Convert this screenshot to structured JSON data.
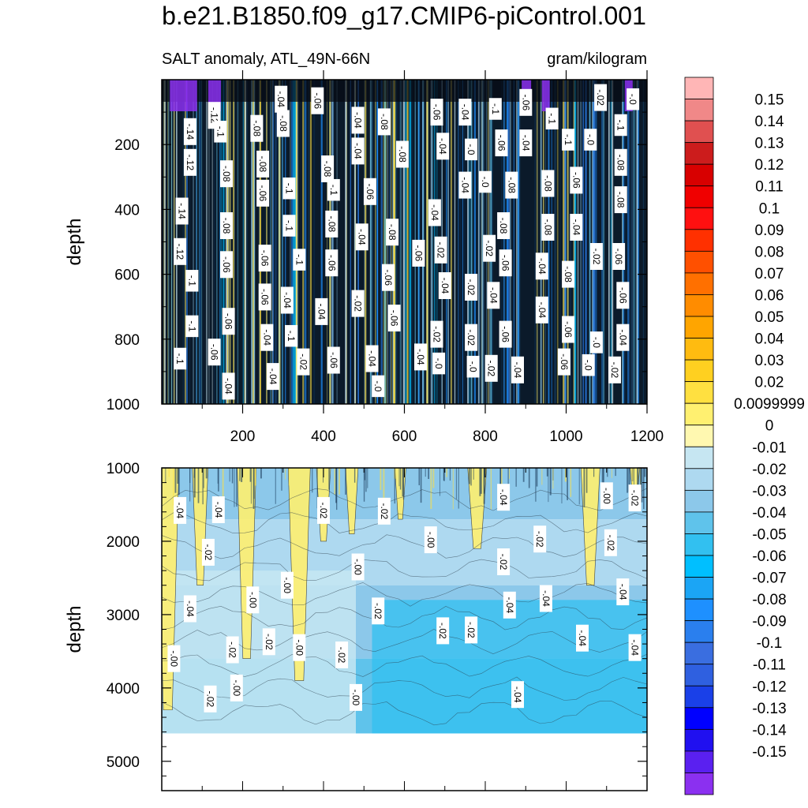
{
  "title": "b.e21.B1850.f09_g17.CMIP6-piControl.001",
  "subtitle_left": "SALT anomaly, ATL_49N-66N",
  "subtitle_right": "gram/kilogram",
  "colors": {
    "levels": [
      "#8b30f0",
      "#5a20f0",
      "#2010f0",
      "#0000ff",
      "#1a40e8",
      "#2f60e0",
      "#3a6ee0",
      "#2a7fee",
      "#1e90ff",
      "#1ba5f5",
      "#00bfff",
      "#32c0f0",
      "#5fc3eb",
      "#8cc8ea",
      "#aed9f0",
      "#c6e6f2",
      "#fff8b0",
      "#fff070",
      "#ffe040",
      "#ffd020",
      "#ffbb10",
      "#ffa500",
      "#ff8c00",
      "#ff7000",
      "#ff5000",
      "#ff3000",
      "#ff1010",
      "#f00000",
      "#d80000",
      "#cc1c1c",
      "#e05050",
      "#f08888",
      "#ffb6b6"
    ]
  },
  "chart_data": [
    {
      "type": "heatmap",
      "name": "upper-panel",
      "title": "SALT anomaly, ATL_49N-66N",
      "xlabel": "",
      "ylabel": "depth",
      "xlim": [
        0,
        1200
      ],
      "ylim": [
        1000,
        0
      ],
      "xticks": [
        200,
        400,
        600,
        800,
        1000,
        1200
      ],
      "yticks": [
        200,
        400,
        600,
        800,
        1000
      ],
      "contour_labels": [
        {
          "text": "-.14",
          "x": 70,
          "y": 160
        },
        {
          "text": "-.12",
          "x": 130,
          "y": 110
        },
        {
          "text": "-.1",
          "x": 145,
          "y": 160
        },
        {
          "text": "-.12",
          "x": 70,
          "y": 255
        },
        {
          "text": "-.08",
          "x": 160,
          "y": 290
        },
        {
          "text": "-.14",
          "x": 50,
          "y": 405
        },
        {
          "text": "-.12",
          "x": 45,
          "y": 530
        },
        {
          "text": "-.1",
          "x": 75,
          "y": 620
        },
        {
          "text": "-.1",
          "x": 75,
          "y": 760
        },
        {
          "text": "-.1",
          "x": 45,
          "y": 860
        },
        {
          "text": "-.06",
          "x": 130,
          "y": 840
        },
        {
          "text": "-.08",
          "x": 160,
          "y": 450
        },
        {
          "text": "-.06",
          "x": 160,
          "y": 570
        },
        {
          "text": "-.06",
          "x": 165,
          "y": 745
        },
        {
          "text": "-.04",
          "x": 165,
          "y": 945
        },
        {
          "text": "-.08",
          "x": 235,
          "y": 150
        },
        {
          "text": "-.08",
          "x": 300,
          "y": 135
        },
        {
          "text": "-.04",
          "x": 295,
          "y": 60
        },
        {
          "text": "-.06",
          "x": 385,
          "y": 65
        },
        {
          "text": "-.08",
          "x": 250,
          "y": 260
        },
        {
          "text": "-.06",
          "x": 250,
          "y": 350
        },
        {
          "text": "-.06",
          "x": 255,
          "y": 550
        },
        {
          "text": "-.06",
          "x": 255,
          "y": 670
        },
        {
          "text": "-.04",
          "x": 260,
          "y": 795
        },
        {
          "text": "-.04",
          "x": 275,
          "y": 915
        },
        {
          "text": "-.1",
          "x": 315,
          "y": 335
        },
        {
          "text": "-.1",
          "x": 315,
          "y": 450
        },
        {
          "text": "-.1",
          "x": 340,
          "y": 555
        },
        {
          "text": "-.04",
          "x": 310,
          "y": 680
        },
        {
          "text": "-.1",
          "x": 320,
          "y": 790
        },
        {
          "text": "-.02",
          "x": 350,
          "y": 870
        },
        {
          "text": "-.08",
          "x": 410,
          "y": 275
        },
        {
          "text": "-.1",
          "x": 425,
          "y": 340
        },
        {
          "text": "-.08",
          "x": 420,
          "y": 445
        },
        {
          "text": "-.06",
          "x": 420,
          "y": 565
        },
        {
          "text": "-.04",
          "x": 395,
          "y": 715
        },
        {
          "text": "-.06",
          "x": 425,
          "y": 865
        },
        {
          "text": "-.04",
          "x": 485,
          "y": 125
        },
        {
          "text": "-.04",
          "x": 485,
          "y": 220
        },
        {
          "text": "-.06",
          "x": 515,
          "y": 345
        },
        {
          "text": "-.04",
          "x": 495,
          "y": 485
        },
        {
          "text": "-.02",
          "x": 485,
          "y": 690
        },
        {
          "text": "-.04",
          "x": 520,
          "y": 860
        },
        {
          "text": "-.0",
          "x": 535,
          "y": 945
        },
        {
          "text": "-.08",
          "x": 550,
          "y": 130
        },
        {
          "text": "-.08",
          "x": 595,
          "y": 230
        },
        {
          "text": "-.08",
          "x": 570,
          "y": 470
        },
        {
          "text": "-.06",
          "x": 560,
          "y": 610
        },
        {
          "text": "-.06",
          "x": 575,
          "y": 735
        },
        {
          "text": "-.06",
          "x": 635,
          "y": 535
        },
        {
          "text": "-.04",
          "x": 640,
          "y": 855
        },
        {
          "text": "-.06",
          "x": 680,
          "y": 100
        },
        {
          "text": "-.04",
          "x": 695,
          "y": 205
        },
        {
          "text": "-.04",
          "x": 675,
          "y": 410
        },
        {
          "text": "-.02",
          "x": 690,
          "y": 525
        },
        {
          "text": "-.04",
          "x": 700,
          "y": 635
        },
        {
          "text": "-.02",
          "x": 680,
          "y": 785
        },
        {
          "text": "-.0",
          "x": 685,
          "y": 875
        },
        {
          "text": "-.04",
          "x": 750,
          "y": 100
        },
        {
          "text": "-.0",
          "x": 765,
          "y": 215
        },
        {
          "text": "-.04",
          "x": 750,
          "y": 325
        },
        {
          "text": "-.02",
          "x": 765,
          "y": 640
        },
        {
          "text": "-.02",
          "x": 765,
          "y": 795
        },
        {
          "text": "-.0",
          "x": 770,
          "y": 885
        },
        {
          "text": "-.02",
          "x": 810,
          "y": 520
        },
        {
          "text": "-.0",
          "x": 800,
          "y": 315
        },
        {
          "text": "-.1",
          "x": 825,
          "y": 90
        },
        {
          "text": "-.06",
          "x": 840,
          "y": 195
        },
        {
          "text": "-.08",
          "x": 865,
          "y": 325
        },
        {
          "text": "-.08",
          "x": 845,
          "y": 450
        },
        {
          "text": "-.06",
          "x": 850,
          "y": 565
        },
        {
          "text": "-.04",
          "x": 820,
          "y": 665
        },
        {
          "text": "-.06",
          "x": 850,
          "y": 785
        },
        {
          "text": "-.02",
          "x": 815,
          "y": 890
        },
        {
          "text": "-.04",
          "x": 880,
          "y": 895
        },
        {
          "text": "-.06",
          "x": 900,
          "y": 70
        },
        {
          "text": "-.04",
          "x": 900,
          "y": 195
        },
        {
          "text": "-.1",
          "x": 965,
          "y": 120
        },
        {
          "text": "-.08",
          "x": 955,
          "y": 320
        },
        {
          "text": "-.08",
          "x": 955,
          "y": 455
        },
        {
          "text": "-.04",
          "x": 940,
          "y": 575
        },
        {
          "text": "-.04",
          "x": 940,
          "y": 710
        },
        {
          "text": "-.06",
          "x": 1005,
          "y": 770
        },
        {
          "text": "-.06",
          "x": 995,
          "y": 870
        },
        {
          "text": "-.1",
          "x": 1005,
          "y": 185
        },
        {
          "text": "-.06",
          "x": 1025,
          "y": 310
        },
        {
          "text": "-.04",
          "x": 1025,
          "y": 455
        },
        {
          "text": "-.08",
          "x": 1005,
          "y": 600
        },
        {
          "text": "-.0",
          "x": 1060,
          "y": 185
        },
        {
          "text": "-.0",
          "x": 1075,
          "y": 810
        },
        {
          "text": "-.0",
          "x": 1055,
          "y": 880
        },
        {
          "text": "-.02",
          "x": 1085,
          "y": 55
        },
        {
          "text": "-.02",
          "x": 1075,
          "y": 545
        },
        {
          "text": "-.1",
          "x": 1135,
          "y": 140
        },
        {
          "text": "-.08",
          "x": 1135,
          "y": 255
        },
        {
          "text": "-.08",
          "x": 1135,
          "y": 370
        },
        {
          "text": "-.06",
          "x": 1130,
          "y": 545
        },
        {
          "text": "-.06",
          "x": 1140,
          "y": 665
        },
        {
          "text": "-.04",
          "x": 1140,
          "y": 795
        },
        {
          "text": "-.02",
          "x": 1120,
          "y": 895
        },
        {
          "text": "-.0",
          "x": 1165,
          "y": 60
        }
      ]
    },
    {
      "type": "heatmap",
      "name": "lower-panel",
      "title": "",
      "xlabel": "",
      "ylabel": "depth",
      "xlim": [
        0,
        1200
      ],
      "ylim": [
        5400,
        1000
      ],
      "xticks": [],
      "yticks": [
        1000,
        2000,
        3000,
        4000,
        5000
      ],
      "data_bottom_depth": 4620,
      "contour_labels": [
        {
          "text": "-.04",
          "x": 45,
          "y": 1580
        },
        {
          "text": "-.04",
          "x": 140,
          "y": 1570
        },
        {
          "text": "-.02",
          "x": 115,
          "y": 2150
        },
        {
          "text": "-.04",
          "x": 70,
          "y": 2920
        },
        {
          "text": "-.00",
          "x": 30,
          "y": 3600
        },
        {
          "text": "-.02",
          "x": 120,
          "y": 4150
        },
        {
          "text": "-.00",
          "x": 185,
          "y": 4000
        },
        {
          "text": "-.02",
          "x": 175,
          "y": 3480
        },
        {
          "text": "-.00",
          "x": 225,
          "y": 2800
        },
        {
          "text": "-.02",
          "x": 265,
          "y": 3370
        },
        {
          "text": "-.00",
          "x": 310,
          "y": 2600
        },
        {
          "text": "-.00",
          "x": 340,
          "y": 3450
        },
        {
          "text": "-.02",
          "x": 445,
          "y": 3550
        },
        {
          "text": "-.02",
          "x": 400,
          "y": 1580
        },
        {
          "text": "-.00",
          "x": 485,
          "y": 2350
        },
        {
          "text": "-.00",
          "x": 480,
          "y": 4130
        },
        {
          "text": "-.02",
          "x": 550,
          "y": 1590
        },
        {
          "text": "-.02",
          "x": 535,
          "y": 2950
        },
        {
          "text": "-.00",
          "x": 665,
          "y": 1980
        },
        {
          "text": "-.02",
          "x": 695,
          "y": 3220
        },
        {
          "text": "-.02",
          "x": 765,
          "y": 3210
        },
        {
          "text": "-.04",
          "x": 845,
          "y": 1400
        },
        {
          "text": "-.02",
          "x": 845,
          "y": 2280
        },
        {
          "text": "-.04",
          "x": 860,
          "y": 2870
        },
        {
          "text": "-.04",
          "x": 880,
          "y": 4090
        },
        {
          "text": "-.02",
          "x": 935,
          "y": 1970
        },
        {
          "text": "-.04",
          "x": 950,
          "y": 2780
        },
        {
          "text": "-.04",
          "x": 1040,
          "y": 3320
        },
        {
          "text": "-.00",
          "x": 1100,
          "y": 1380
        },
        {
          "text": "-.02",
          "x": 1110,
          "y": 2020
        },
        {
          "text": "-.04",
          "x": 1140,
          "y": 2690
        },
        {
          "text": "-.02",
          "x": 1170,
          "y": 1410
        },
        {
          "text": "-.04",
          "x": 1170,
          "y": 3450
        }
      ]
    },
    {
      "type": "colorbar",
      "name": "colorbar",
      "labels": [
        "0.15",
        "0.14",
        "0.13",
        "0.12",
        "0.11",
        "0.1",
        "0.09",
        "0.08",
        "0.07",
        "0.06",
        "0.05",
        "0.04",
        "0.03",
        "0.02",
        "0.0099999",
        "0",
        "-0.01",
        "-0.02",
        "-0.03",
        "-0.04",
        "-0.05",
        "-0.06",
        "-0.07",
        "-0.08",
        "-0.09",
        "-0.1",
        "-0.11",
        "-0.12",
        "-0.13",
        "-0.14",
        "-0.15"
      ]
    }
  ]
}
